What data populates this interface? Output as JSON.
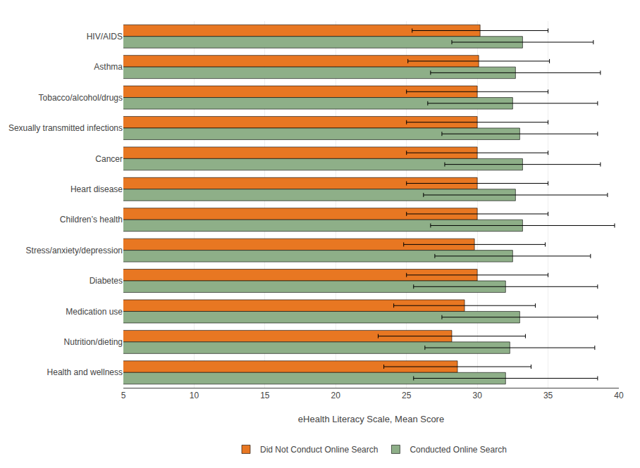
{
  "chart_data": {
    "type": "bar",
    "orientation": "horizontal",
    "categories": [
      "HIV/AIDS",
      "Asthma",
      "Tobacco/alcohol/drugs",
      "Sexually transmitted infections",
      "Cancer",
      "Heart disease",
      "Children’s health",
      "Stress/anxiety/depression",
      "Diabetes",
      "Medication use",
      "Nutrition/dieting",
      "Health and wellness"
    ],
    "series": [
      {
        "name": "Did Not Conduct Online Search",
        "color": "#E87722",
        "values": [
          30.2,
          30.1,
          30.0,
          30.0,
          30.0,
          30.0,
          30.0,
          29.8,
          30.0,
          29.1,
          28.2,
          28.6
        ],
        "errors": [
          4.8,
          5.0,
          5.0,
          5.0,
          5.0,
          5.0,
          5.0,
          5.0,
          5.0,
          5.0,
          5.2,
          5.2
        ]
      },
      {
        "name": "Conducted Online Search",
        "color": "#8EAF88",
        "values": [
          33.2,
          32.7,
          32.5,
          33.0,
          33.2,
          32.7,
          33.2,
          32.5,
          32.0,
          33.0,
          32.3,
          32.0
        ],
        "errors": [
          5.0,
          6.0,
          6.0,
          5.5,
          5.5,
          6.5,
          6.5,
          5.5,
          6.5,
          5.5,
          6.0,
          6.5
        ]
      }
    ],
    "xlabel": "eHealth Literacy Scale, Mean Score",
    "xlim": [
      5,
      40
    ],
    "xticks": [
      5,
      10,
      15,
      20,
      25,
      30,
      35,
      40
    ],
    "grid": true,
    "legend": "bottom"
  }
}
